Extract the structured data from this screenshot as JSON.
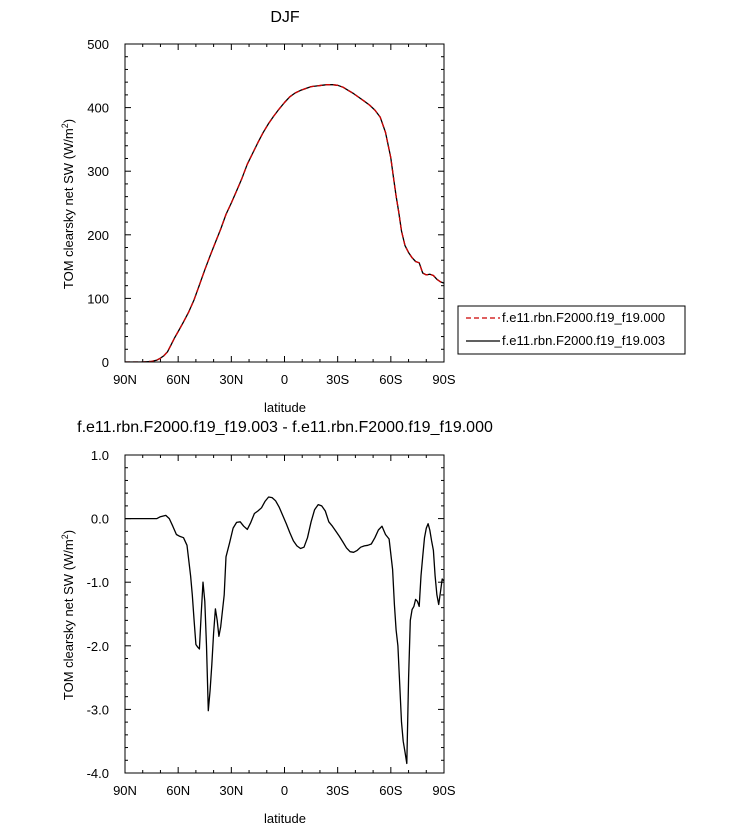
{
  "chart_data": [
    {
      "type": "line",
      "title": "DJF",
      "xlabel": "latitude",
      "ylabel": "TOM clearsky net SW (W/m",
      "ylabel_sup": "2",
      "ylabel_end": ")",
      "xlim": [
        90,
        -90
      ],
      "ylim": [
        0,
        500
      ],
      "x_ticks": [
        90,
        60,
        30,
        0,
        -30,
        -60,
        -90
      ],
      "x_tick_labels": [
        "90N",
        "60N",
        "30N",
        "0",
        "30S",
        "60S",
        "90S"
      ],
      "y_ticks": [
        0,
        100,
        200,
        300,
        400,
        500
      ],
      "y_tick_labels": [
        "0",
        "100",
        "200",
        "300",
        "400",
        "500"
      ],
      "legend_position": "right",
      "series": [
        {
          "name": "f.e11.rbn.F2000.f19_f19.000",
          "color": "#cc0000",
          "dash": "dashed",
          "x": [
            90,
            85,
            80,
            75,
            72,
            70,
            68,
            66,
            64,
            62,
            60,
            57,
            54,
            51,
            48,
            45,
            42,
            39,
            36,
            33,
            30,
            27,
            24,
            21,
            18,
            15,
            12,
            9,
            6,
            3,
            0,
            -3,
            -6,
            -9,
            -12,
            -15,
            -18,
            -21,
            -24,
            -27,
            -30,
            -33,
            -36,
            -39,
            -42,
            -45,
            -48,
            -51,
            -54,
            -57,
            -60,
            -61.5,
            -63,
            -64.5,
            -66,
            -68,
            -70,
            -72,
            -74,
            -76,
            -78,
            -80,
            -82,
            -84,
            -86,
            -88,
            -90
          ],
          "y": [
            0,
            0,
            0,
            1,
            3,
            6,
            10,
            16,
            27,
            38,
            48,
            63,
            79,
            98,
            121,
            145,
            167,
            188,
            209,
            232,
            250,
            269,
            289,
            311,
            328,
            345,
            361,
            375,
            387,
            398,
            408,
            417,
            423,
            427,
            430,
            433,
            434,
            435,
            436,
            436,
            435,
            432,
            427,
            422,
            416,
            410,
            404,
            396,
            385,
            361,
            321,
            290,
            261,
            235,
            206,
            183,
            172,
            164,
            158,
            156,
            140,
            137,
            138,
            136,
            130,
            126,
            124
          ],
          "clip": true
        },
        {
          "name": "f.e11.rbn.F2000.f19_f19.003",
          "color": "#000000",
          "dash": "solid",
          "x": [
            90,
            85,
            80,
            75,
            72,
            70,
            68,
            66,
            64,
            62,
            60,
            57,
            54,
            51,
            48,
            45,
            42,
            39,
            36,
            33,
            30,
            27,
            24,
            21,
            18,
            15,
            12,
            9,
            6,
            3,
            0,
            -3,
            -6,
            -9,
            -12,
            -15,
            -18,
            -21,
            -24,
            -27,
            -30,
            -33,
            -36,
            -39,
            -42,
            -45,
            -48,
            -51,
            -54,
            -57,
            -60,
            -61.5,
            -63,
            -64.5,
            -66,
            -68,
            -70,
            -72,
            -74,
            -76,
            -78,
            -80,
            -82,
            -84,
            -86,
            -88,
            -90
          ],
          "y": [
            0,
            0,
            0,
            1,
            3,
            6,
            10,
            16,
            27,
            38,
            48,
            63,
            79,
            98,
            121,
            145,
            167,
            188,
            209,
            232,
            250,
            269,
            289,
            311,
            328,
            345,
            361,
            375,
            387,
            398,
            408,
            417,
            423,
            427,
            430,
            433,
            434,
            435,
            436,
            436,
            435,
            432,
            427,
            422,
            416,
            410,
            404,
            396,
            385,
            361,
            321,
            290,
            261,
            235,
            206,
            183,
            172,
            164,
            158,
            156,
            140,
            137,
            138,
            136,
            130,
            126,
            124
          ],
          "clip": true
        }
      ]
    },
    {
      "type": "line",
      "title": "f.e11.rbn.F2000.f19_f19.003 - f.e11.rbn.F2000.f19_f19.000",
      "xlabel": "latitude",
      "ylabel": "TOM clearsky net SW (W/m",
      "ylabel_sup": "2",
      "ylabel_end": ")",
      "xlim": [
        90,
        -90
      ],
      "ylim": [
        -4.0,
        1.0
      ],
      "x_ticks": [
        90,
        60,
        30,
        0,
        -30,
        -60,
        -90
      ],
      "x_tick_labels": [
        "90N",
        "60N",
        "30N",
        "0",
        "30S",
        "60S",
        "90S"
      ],
      "y_ticks": [
        1.0,
        0.0,
        -1.0,
        -2.0,
        -3.0,
        -4.0
      ],
      "y_tick_labels": [
        "1.0",
        "0.0",
        "-1.0",
        "-2.0",
        "-3.0",
        "-4.0"
      ],
      "series": [
        {
          "name": "",
          "color": "#000000",
          "dash": "solid",
          "x": [
            90,
            85,
            80,
            75,
            72,
            70,
            67,
            65,
            63,
            61,
            59,
            57,
            55,
            53,
            52,
            51,
            50,
            49,
            48,
            47,
            46,
            45,
            44,
            43,
            42,
            41,
            40,
            39,
            38,
            37,
            36,
            34,
            33,
            31,
            29,
            27,
            25,
            23,
            21,
            19,
            17,
            15,
            13,
            11,
            9,
            7,
            5,
            3,
            1,
            -1,
            -3,
            -5,
            -7,
            -9,
            -11,
            -13,
            -15,
            -17,
            -19,
            -21,
            -23,
            -25,
            -27,
            -29,
            -31,
            -33,
            -35,
            -37,
            -39,
            -41,
            -43,
            -45,
            -47,
            -49,
            -51,
            -53,
            -55,
            -57,
            -59,
            -61,
            -62,
            -63,
            -64,
            -65,
            -66,
            -67,
            -68,
            -69,
            -70,
            -71,
            -72,
            -73,
            -74,
            -75,
            -76,
            -77,
            -78,
            -79,
            -80,
            -81,
            -82,
            -83,
            -84,
            -85,
            -86,
            -87,
            -88,
            -89,
            -90
          ],
          "y": [
            0,
            0,
            0,
            0,
            0,
            0.03,
            0.05,
            0,
            -0.12,
            -0.25,
            -0.28,
            -0.3,
            -0.42,
            -0.9,
            -1.2,
            -1.6,
            -1.98,
            -2.02,
            -2.05,
            -1.5,
            -1.0,
            -1.3,
            -2.0,
            -3.02,
            -2.7,
            -2.3,
            -1.8,
            -1.42,
            -1.6,
            -1.85,
            -1.7,
            -1.2,
            -0.6,
            -0.38,
            -0.15,
            -0.06,
            -0.05,
            -0.12,
            -0.17,
            -0.06,
            0.08,
            0.12,
            0.17,
            0.27,
            0.34,
            0.33,
            0.28,
            0.18,
            0.05,
            -0.08,
            -0.22,
            -0.35,
            -0.43,
            -0.47,
            -0.45,
            -0.3,
            -0.05,
            0.14,
            0.22,
            0.2,
            0.12,
            -0.05,
            -0.12,
            -0.2,
            -0.28,
            -0.37,
            -0.46,
            -0.52,
            -0.53,
            -0.5,
            -0.45,
            -0.43,
            -0.42,
            -0.4,
            -0.3,
            -0.18,
            -0.12,
            -0.25,
            -0.32,
            -0.8,
            -1.35,
            -1.75,
            -2.0,
            -2.6,
            -3.2,
            -3.5,
            -3.67,
            -3.85,
            -2.5,
            -1.6,
            -1.43,
            -1.38,
            -1.27,
            -1.3,
            -1.38,
            -0.9,
            -0.6,
            -0.3,
            -0.15,
            -0.08,
            -0.18,
            -0.35,
            -0.5,
            -0.9,
            -1.2,
            -1.35,
            -1.15,
            -0.95,
            -0.98
          ],
          "clip": true
        }
      ]
    }
  ]
}
